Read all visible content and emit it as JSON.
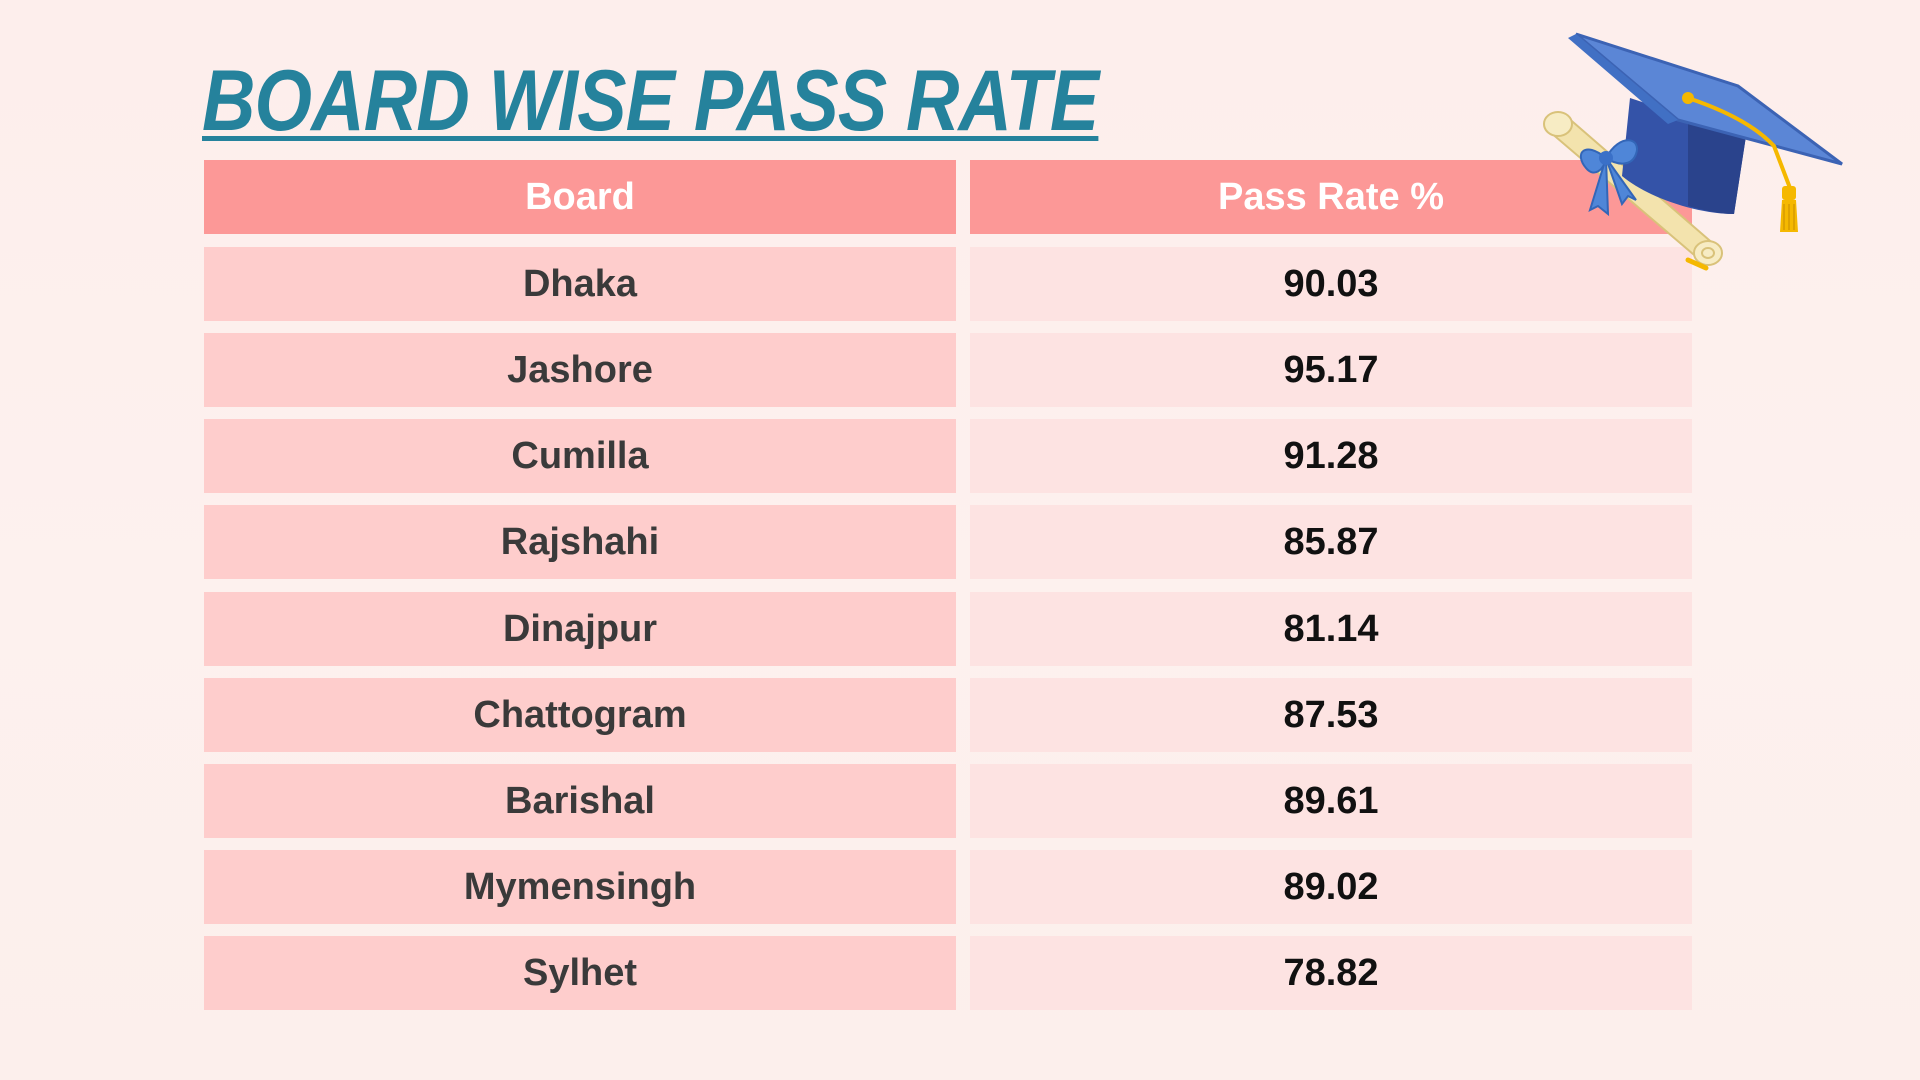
{
  "title": "BOARD WISE PASS RATE",
  "colors": {
    "title": "#25829c",
    "header_bg": "#fc9897",
    "board_cell_bg": "#fecdcc",
    "rate_cell_bg": "#fde3e2"
  },
  "decoration": {
    "icon": "graduation-cap-and-diploma-icon"
  },
  "chart_data": {
    "type": "table",
    "columns": [
      "Board",
      "Pass Rate %"
    ],
    "rows": [
      {
        "board": "Dhaka",
        "pass_rate": "90.03"
      },
      {
        "board": "Jashore",
        "pass_rate": "95.17"
      },
      {
        "board": "Cumilla",
        "pass_rate": "91.28"
      },
      {
        "board": "Rajshahi",
        "pass_rate": "85.87"
      },
      {
        "board": "Dinajpur",
        "pass_rate": "81.14"
      },
      {
        "board": "Chattogram",
        "pass_rate": "87.53"
      },
      {
        "board": "Barishal",
        "pass_rate": "89.61"
      },
      {
        "board": "Mymensingh",
        "pass_rate": "89.02"
      },
      {
        "board": "Sylhet",
        "pass_rate": "78.82"
      }
    ]
  }
}
